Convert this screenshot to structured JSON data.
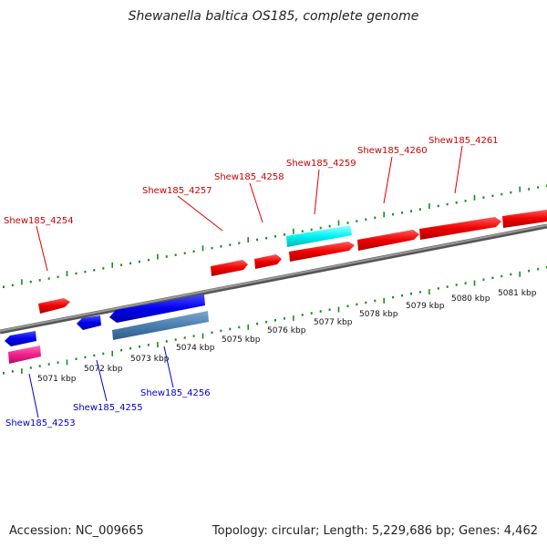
{
  "title": "Shewanella baltica OS185, complete genome",
  "accession": "Accession: NC_009665",
  "summary": "Topology: circular; Length: 5,229,686 bp; Genes: 4,462",
  "colors": {
    "forward": "#ff0000",
    "reverse": "#0000ff",
    "forward_label": "#cc0000",
    "reverse_label": "#0000cc",
    "backbone": "#808080",
    "ticks": "#1a8a1a",
    "cyan_feature": "#00ffff",
    "steel_feature": "#4682b4",
    "magenta_feature": "#ff1493"
  },
  "ticks": [
    "5071 kbp",
    "5072 kbp",
    "5073 kbp",
    "5074 kbp",
    "5075 kbp",
    "5076 kbp",
    "5077 kbp",
    "5078 kbp",
    "5079 kbp",
    "5080 kbp",
    "5081 kbp"
  ],
  "genes": {
    "forward": [
      "Shew185_4254",
      "Shew185_4257",
      "Shew185_4258",
      "Shew185_4259",
      "Shew185_4260",
      "Shew185_4261"
    ],
    "reverse": [
      "Shew185_4253",
      "Shew185_4255",
      "Shew185_4256"
    ]
  }
}
